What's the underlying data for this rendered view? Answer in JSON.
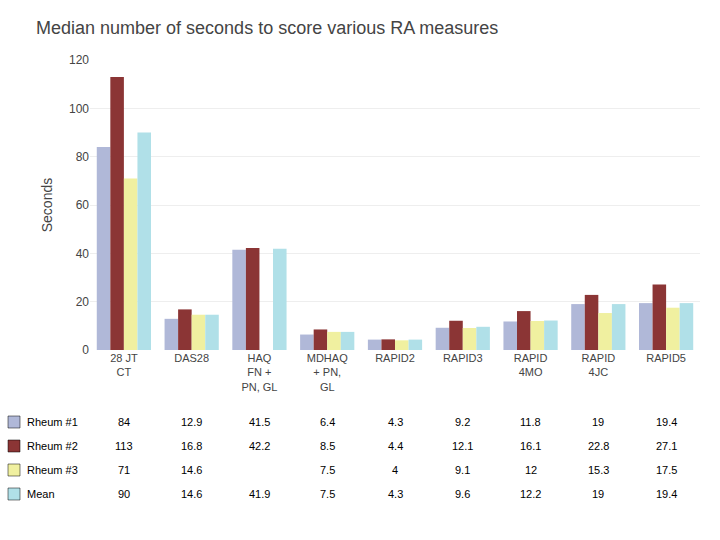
{
  "chart_data": {
    "type": "bar",
    "title": "Median number of seconds to score various RA measures",
    "y_label": "Seconds",
    "categories": [
      "28 JT\nCT",
      "DAS28",
      "HAQ\nFN +\nPN, GL",
      "MDHAQ\n+ PN,\nGL",
      "RAPID2",
      "RAPID3",
      "RAPID\n4MO",
      "RAPID\n4JC",
      "RAPID5"
    ],
    "series": [
      {
        "name": "Rheum #1",
        "color": "#b0b8d8",
        "values": [
          84,
          12.9,
          41.5,
          6.4,
          4.3,
          9.2,
          11.8,
          19,
          19.4
        ]
      },
      {
        "name": "Rheum #2",
        "color": "#8b3535",
        "values": [
          113,
          16.8,
          42.2,
          8.5,
          4.4,
          12.1,
          16.1,
          22.8,
          27.1
        ]
      },
      {
        "name": "Rheum #3",
        "color": "#f0f0a0",
        "values": [
          71,
          14.6,
          null,
          7.5,
          4,
          9.1,
          12,
          15.3,
          17.5
        ]
      },
      {
        "name": "Mean",
        "color": "#b0e0e8",
        "values": [
          90,
          14.6,
          41.9,
          7.5,
          4.3,
          9.6,
          12.2,
          19,
          19.4
        ]
      }
    ],
    "ylim": [
      0,
      120
    ],
    "yticks": [
      0,
      20,
      40,
      60,
      80,
      100,
      120
    ],
    "grid": true
  }
}
